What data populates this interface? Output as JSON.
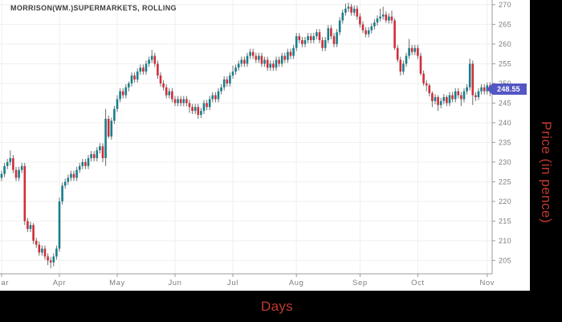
{
  "title": "MORRISON(WM.)SUPERMARKETS, ROLLING",
  "price_badge": {
    "value": "248.55"
  },
  "axis_titles": {
    "x": "Days",
    "y": "Price (in pence)"
  },
  "colors": {
    "up": "#177e8b",
    "down": "#d02d39",
    "wick": "#6e6e6e",
    "grid": "#efefef",
    "axis": "#9b9b9b",
    "tick_label": "#7d7d7d",
    "badge": "#5356c4",
    "axis_title": "#c13a30",
    "panel_bg": "#ffffff",
    "frame_bg": "#000000",
    "title_text": "#3c3c3c"
  },
  "chart_data": {
    "type": "candlestick",
    "title": "MORRISON(WM.)SUPERMARKETS, ROLLING",
    "xlabel": "Days",
    "ylabel": "Price (in pence)",
    "ylim": [
      201.6,
      271.2
    ],
    "y_ticks": [
      205,
      210,
      215,
      220,
      225,
      230,
      235,
      240,
      245,
      250,
      255,
      260,
      265,
      270
    ],
    "x_tick_labels": [
      "Mar",
      "Apr",
      "May",
      "Jun",
      "Jul",
      "Aug",
      "Sep",
      "Oct",
      "Nov"
    ],
    "x_tick_days": [
      0,
      20,
      40,
      60,
      80,
      102,
      124,
      144,
      168
    ],
    "last_price": 248.55,
    "grid": true,
    "legend": "none",
    "candles_ohlc": [
      [
        226,
        227.8,
        225.2,
        227
      ],
      [
        227,
        229.8,
        226.2,
        229
      ],
      [
        229,
        230.8,
        228.2,
        230
      ],
      [
        230,
        233,
        229.2,
        231
      ],
      [
        231,
        231.8,
        227.2,
        228
      ],
      [
        228,
        228.8,
        225.2,
        226
      ],
      [
        226,
        228.8,
        225.2,
        228
      ],
      [
        228,
        229.8,
        227.2,
        229
      ],
      [
        229,
        229.8,
        214,
        215
      ],
      [
        215,
        215.8,
        212.2,
        213
      ],
      [
        213,
        214.8,
        212.2,
        214
      ],
      [
        214,
        214.5,
        209.2,
        210
      ],
      [
        210,
        210.8,
        208.2,
        209
      ],
      [
        209,
        209.8,
        206.2,
        207
      ],
      [
        207,
        208.8,
        206.2,
        208
      ],
      [
        208,
        208.8,
        205.2,
        206
      ],
      [
        206,
        206.8,
        203.8,
        205
      ],
      [
        205,
        205.8,
        203,
        204.5
      ],
      [
        204.5,
        206.8,
        203.5,
        206
      ],
      [
        206,
        208.8,
        205.2,
        208
      ],
      [
        208,
        221,
        207.2,
        220
      ],
      [
        220,
        224.8,
        219.2,
        224
      ],
      [
        224,
        225.8,
        223.2,
        225
      ],
      [
        225,
        226.8,
        224.2,
        226
      ],
      [
        226,
        227.8,
        225.2,
        227
      ],
      [
        227,
        227.8,
        225.2,
        226
      ],
      [
        226,
        228.8,
        225.2,
        228
      ],
      [
        228,
        229.8,
        227.2,
        229
      ],
      [
        229,
        230.8,
        228.2,
        230
      ],
      [
        230,
        230.8,
        228.2,
        229
      ],
      [
        229,
        231.8,
        228.2,
        231
      ],
      [
        231,
        232.8,
        230.2,
        232
      ],
      [
        232,
        232.8,
        230.2,
        231
      ],
      [
        231,
        233.8,
        230.2,
        233
      ],
      [
        233,
        234.8,
        232.2,
        234
      ],
      [
        234,
        234.8,
        230,
        231
      ],
      [
        231,
        243.5,
        229,
        241
      ],
      [
        241,
        241.8,
        236,
        236.5
      ],
      [
        236.5,
        241.3,
        235.7,
        240.5
      ],
      [
        240.5,
        244.3,
        239.7,
        243.5
      ],
      [
        243.5,
        247,
        242.7,
        246
      ],
      [
        246,
        248.8,
        245.2,
        248
      ],
      [
        248,
        248.8,
        246.2,
        247
      ],
      [
        247,
        249.8,
        246.2,
        249
      ],
      [
        249,
        250.5,
        248,
        250
      ],
      [
        250,
        252.8,
        249.2,
        252
      ],
      [
        252,
        252.8,
        250.2,
        251
      ],
      [
        251,
        253.8,
        250.2,
        253
      ],
      [
        253,
        254.8,
        252.2,
        254
      ],
      [
        254,
        254.8,
        252.2,
        253
      ],
      [
        253,
        255.8,
        252.2,
        255
      ],
      [
        255,
        256.8,
        254.2,
        256
      ],
      [
        256,
        258.5,
        255.2,
        257
      ],
      [
        257,
        257.8,
        254.2,
        255
      ],
      [
        255,
        255.8,
        251.2,
        252
      ],
      [
        252,
        252.8,
        249.2,
        250
      ],
      [
        250,
        250.8,
        248.2,
        249
      ],
      [
        249,
        249.8,
        246.2,
        247
      ],
      [
        247,
        248.8,
        246.2,
        248
      ],
      [
        248,
        248.8,
        245.2,
        246
      ],
      [
        246,
        246.8,
        244.2,
        245
      ],
      [
        245,
        246.8,
        244.2,
        246
      ],
      [
        246,
        246.8,
        244.2,
        245
      ],
      [
        245,
        246.8,
        244.2,
        246
      ],
      [
        246,
        246.8,
        244.2,
        245
      ],
      [
        245,
        245.8,
        242.5,
        244
      ],
      [
        244,
        244.8,
        242.2,
        243
      ],
      [
        243,
        244.8,
        242.2,
        244
      ],
      [
        244,
        244.8,
        241,
        242
      ],
      [
        242,
        243.8,
        241.2,
        243
      ],
      [
        243,
        245.8,
        242.2,
        245
      ],
      [
        245,
        245.8,
        243.2,
        244
      ],
      [
        244,
        246.8,
        243.2,
        246
      ],
      [
        246,
        247.8,
        245.2,
        247
      ],
      [
        247,
        247.8,
        245.2,
        246
      ],
      [
        246,
        248.8,
        245.2,
        248
      ],
      [
        248,
        249.8,
        247.2,
        249
      ],
      [
        249,
        251.8,
        248.2,
        251
      ],
      [
        251,
        251.8,
        249.2,
        250
      ],
      [
        250,
        252.8,
        249.2,
        252
      ],
      [
        252,
        254.5,
        251.2,
        253
      ],
      [
        253,
        254.8,
        252.2,
        254
      ],
      [
        254,
        255.8,
        253.2,
        255
      ],
      [
        255,
        256.8,
        254.2,
        256
      ],
      [
        256,
        256.8,
        254.2,
        255
      ],
      [
        255,
        257.8,
        254.2,
        257
      ],
      [
        257,
        258.8,
        256.2,
        258
      ],
      [
        258,
        258.8,
        256.2,
        257
      ],
      [
        257,
        257.8,
        255.2,
        256
      ],
      [
        256,
        257.8,
        255.2,
        257
      ],
      [
        257,
        257.8,
        254.2,
        255
      ],
      [
        255,
        256.8,
        254.2,
        256
      ],
      [
        256,
        256.8,
        253.2,
        254
      ],
      [
        254,
        255.8,
        253.2,
        255
      ],
      [
        255,
        255.8,
        253.2,
        254
      ],
      [
        254,
        256.8,
        253.2,
        256
      ],
      [
        256,
        256.8,
        254.2,
        255
      ],
      [
        255,
        257.8,
        254.2,
        257
      ],
      [
        257,
        257.8,
        255.2,
        256
      ],
      [
        256,
        258.8,
        255.2,
        258
      ],
      [
        258,
        258.8,
        256.2,
        257
      ],
      [
        257,
        259.8,
        256.2,
        259
      ],
      [
        259,
        262.8,
        258.2,
        262
      ],
      [
        262,
        262.8,
        260.2,
        261
      ],
      [
        261,
        261.8,
        259.2,
        260
      ],
      [
        260,
        261.8,
        259.2,
        261
      ],
      [
        261,
        262.8,
        260.2,
        262
      ],
      [
        262,
        262.8,
        260.2,
        261
      ],
      [
        261,
        262.8,
        260.2,
        262
      ],
      [
        262,
        263.8,
        261.2,
        263
      ],
      [
        263,
        263.8,
        260.2,
        261
      ],
      [
        261,
        261.8,
        258.2,
        259
      ],
      [
        259,
        261.8,
        258.2,
        261
      ],
      [
        261,
        264.8,
        260.2,
        264
      ],
      [
        264,
        264.8,
        261.2,
        262
      ],
      [
        262,
        262.8,
        259.2,
        260
      ],
      [
        260,
        263.8,
        259.2,
        263
      ],
      [
        263,
        266.8,
        262.2,
        266
      ],
      [
        266,
        268.8,
        265.2,
        268
      ],
      [
        268,
        270.3,
        267.2,
        269
      ],
      [
        269,
        270.5,
        268.2,
        269.5
      ],
      [
        269.5,
        270.2,
        267.2,
        268
      ],
      [
        268,
        269.8,
        267.2,
        269
      ],
      [
        269,
        269.8,
        266.2,
        267
      ],
      [
        267,
        267.8,
        264.2,
        265
      ],
      [
        265,
        265.8,
        262.8,
        263.5
      ],
      [
        263.5,
        264.3,
        261.7,
        262.5
      ],
      [
        262.5,
        264.3,
        261.7,
        263.5
      ],
      [
        263.5,
        265.3,
        262.7,
        264.5
      ],
      [
        264.5,
        266.3,
        263.7,
        265.5
      ],
      [
        265.5,
        267.3,
        264.7,
        266.5
      ],
      [
        266.5,
        269,
        265.7,
        267
      ],
      [
        267,
        269.5,
        266.2,
        267.5
      ],
      [
        267.5,
        268.3,
        265.4,
        266
      ],
      [
        266,
        267.8,
        265.2,
        267
      ],
      [
        267,
        268.5,
        265.2,
        266
      ],
      [
        266,
        266.5,
        258.5,
        259
      ],
      [
        259,
        259.8,
        255.4,
        256
      ],
      [
        256,
        256.8,
        252,
        253
      ],
      [
        253,
        255.8,
        252.2,
        255
      ],
      [
        255,
        257.8,
        254.2,
        257
      ],
      [
        257,
        261.3,
        256.2,
        259
      ],
      [
        259,
        259.8,
        257.2,
        258
      ],
      [
        258,
        259.8,
        257.2,
        259
      ],
      [
        259,
        259.8,
        256.2,
        257
      ],
      [
        257,
        257.8,
        252,
        252.5
      ],
      [
        252.5,
        253.3,
        249.4,
        250
      ],
      [
        250,
        250.8,
        248,
        249.5
      ],
      [
        249.5,
        250,
        246.7,
        247.5
      ],
      [
        247.5,
        248,
        244,
        245.5
      ],
      [
        245.5,
        247.3,
        244.7,
        246.5
      ],
      [
        246.5,
        247,
        243,
        244.5
      ],
      [
        244.5,
        246.3,
        243.7,
        245.5
      ],
      [
        245.5,
        247.3,
        244.7,
        246.5
      ],
      [
        246.5,
        247,
        244.2,
        245
      ],
      [
        245,
        247.8,
        244.2,
        247
      ],
      [
        247,
        247.8,
        245.2,
        246
      ],
      [
        246,
        248.8,
        245.2,
        248
      ],
      [
        248,
        248.8,
        246.2,
        247
      ],
      [
        247,
        247.8,
        244.2,
        246
      ],
      [
        246,
        248.8,
        245.2,
        248
      ],
      [
        248,
        249.8,
        247.2,
        249
      ],
      [
        249,
        256.3,
        248.2,
        255
      ],
      [
        255,
        255.8,
        244.5,
        247
      ],
      [
        247,
        247.8,
        245.5,
        246.5
      ],
      [
        246.5,
        248.8,
        245.8,
        248
      ],
      [
        248,
        249.8,
        247.2,
        249
      ],
      [
        249,
        249.8,
        247.2,
        248
      ],
      [
        248,
        250.2,
        247.2,
        249.5
      ],
      [
        249.5,
        250.3,
        246.8,
        248.55
      ]
    ]
  }
}
